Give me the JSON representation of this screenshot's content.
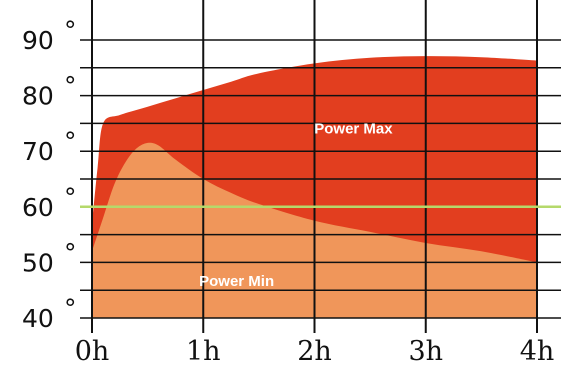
{
  "chart_data": {
    "type": "area",
    "title": "",
    "xlabel": "",
    "ylabel": "",
    "x_unit": "h",
    "y_unit": "°",
    "xlim": [
      0,
      4
    ],
    "ylim": [
      40,
      90
    ],
    "x_ticks": [
      0,
      1,
      2,
      3,
      4
    ],
    "x_tick_labels": [
      "0h",
      "1h",
      "2h",
      "3h",
      "4h"
    ],
    "y_ticks": [
      40,
      50,
      60,
      70,
      80,
      90
    ],
    "y_tick_labels": [
      "40",
      "50",
      "60",
      "70",
      "80",
      "90"
    ],
    "grid": true,
    "series": [
      {
        "name": "Power Max",
        "color": "#e23e1f",
        "x": [
          0,
          0.05,
          0.1,
          0.25,
          0.5,
          0.75,
          1,
          1.25,
          1.5,
          2,
          2.5,
          3,
          3.5,
          4
        ],
        "y": [
          57,
          67,
          75,
          76.5,
          78,
          79.5,
          81,
          82.5,
          84,
          85.8,
          86.8,
          87.1,
          86.9,
          86.3
        ]
      },
      {
        "name": "Power Min",
        "color": "#f0965a",
        "x": [
          0,
          0.1,
          0.2,
          0.3,
          0.4,
          0.5,
          0.6,
          0.75,
          1,
          1.25,
          1.5,
          2,
          2.5,
          3,
          3.5,
          4
        ],
        "y": [
          52,
          58,
          64,
          68,
          70.5,
          71.5,
          71,
          68.5,
          65,
          62.5,
          60.5,
          57.5,
          55.5,
          53.5,
          52,
          50
        ]
      }
    ],
    "reference_line": {
      "y": 60,
      "color": "#b5d96b"
    },
    "grid_color": "#111111"
  }
}
